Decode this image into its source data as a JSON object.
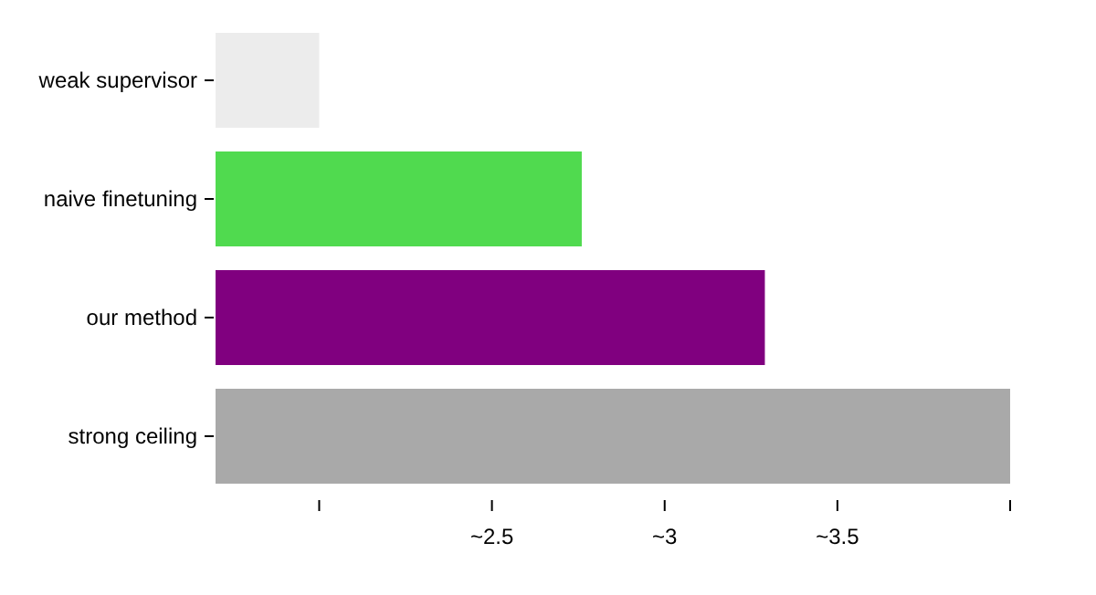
{
  "chart_data": {
    "type": "bar",
    "orientation": "horizontal",
    "categories": [
      "weak supervisor",
      "naive finetuning",
      "our method",
      "strong ceiling"
    ],
    "values": [
      2.0,
      2.76,
      3.29,
      4.0
    ],
    "colors": [
      "#ececec",
      "#50da4f",
      "#80007f",
      "#a9a9a9"
    ],
    "xlim": [
      1.7,
      4.0
    ],
    "xticks": [
      {
        "value": 2,
        "label": null
      },
      {
        "value": 2.5,
        "label": "~2.5"
      },
      {
        "value": 3,
        "label": "~3"
      },
      {
        "value": 3.5,
        "label": "~3.5"
      },
      {
        "value": 4,
        "label": null
      }
    ],
    "grid": false
  }
}
